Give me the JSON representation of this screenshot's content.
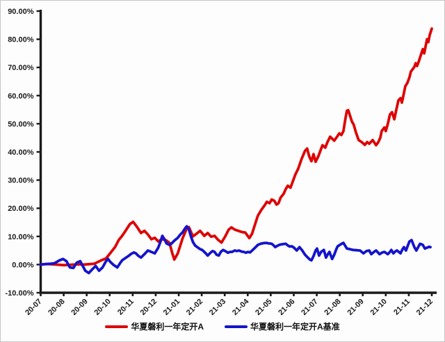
{
  "window": {
    "background": "#fdfdfd",
    "border_color": "#c6c6c6",
    "axis_color": "#1a1a1a"
  },
  "chart_data": {
    "type": "line",
    "title": "",
    "xlabel": "",
    "ylabel": "",
    "grid": "off",
    "legend_position": "bottom",
    "x_axis": {
      "categories": [
        "20-07",
        "20-08",
        "20-09",
        "20-10",
        "20-11",
        "20-12",
        "21-01",
        "21-02",
        "21-03",
        "21-04",
        "21-05",
        "21-06",
        "21-07",
        "21-08",
        "21-09",
        "21-10",
        "21-11",
        "21-12"
      ],
      "label_rotation_deg": -45
    },
    "y_axis": {
      "min": -10,
      "max": 90,
      "tick_step": 10,
      "tick_labels": [
        "90.00%",
        "80.00%",
        "70.00%",
        "60.00%",
        "50.00%",
        "40.00%",
        "30.00%",
        "20.00%",
        "10.00%",
        "0.00%",
        "-10.00%"
      ],
      "unit": "percent"
    },
    "series": [
      {
        "name": "华夏磐利一年定开A",
        "color": "#dd0505",
        "points": [
          [
            0,
            0
          ],
          [
            0.3,
            0.2
          ],
          [
            0.67,
            0
          ],
          [
            1,
            -0.2
          ],
          [
            1.27,
            -0.1
          ],
          [
            1.6,
            0.1
          ],
          [
            1.88,
            0
          ],
          [
            2.33,
            0.3
          ],
          [
            2.63,
            1.5
          ],
          [
            2.84,
            2.2
          ],
          [
            3.02,
            4
          ],
          [
            3.24,
            6.3
          ],
          [
            3.39,
            8.7
          ],
          [
            3.54,
            10.2
          ],
          [
            3.69,
            12
          ],
          [
            3.87,
            14.3
          ],
          [
            4.02,
            15.2
          ],
          [
            4.2,
            13.2
          ],
          [
            4.36,
            11.2
          ],
          [
            4.51,
            12
          ],
          [
            4.66,
            10.7
          ],
          [
            4.81,
            9
          ],
          [
            4.96,
            9.5
          ],
          [
            5.11,
            8.2
          ],
          [
            5.26,
            9
          ],
          [
            5.44,
            8.7
          ],
          [
            5.6,
            7.7
          ],
          [
            5.72,
            4
          ],
          [
            5.81,
            1.8
          ],
          [
            5.96,
            4
          ],
          [
            6.17,
            9.4
          ],
          [
            6.35,
            12.8
          ],
          [
            6.44,
            13.3
          ],
          [
            6.62,
            10
          ],
          [
            6.78,
            11
          ],
          [
            6.93,
            12
          ],
          [
            7.11,
            10.2
          ],
          [
            7.26,
            11.2
          ],
          [
            7.41,
            9.9
          ],
          [
            7.56,
            10.2
          ],
          [
            7.71,
            8.8
          ],
          [
            7.86,
            7.8
          ],
          [
            8.02,
            10
          ],
          [
            8.17,
            12.4
          ],
          [
            8.29,
            13.2
          ],
          [
            8.44,
            12.4
          ],
          [
            8.62,
            11.9
          ],
          [
            8.77,
            11.5
          ],
          [
            8.89,
            11.4
          ],
          [
            9.07,
            9.4
          ],
          [
            9.19,
            11
          ],
          [
            9.29,
            13.6
          ],
          [
            9.44,
            17.4
          ],
          [
            9.59,
            19.4
          ],
          [
            9.74,
            21.1
          ],
          [
            9.83,
            22.3
          ],
          [
            9.95,
            21.8
          ],
          [
            10.04,
            23.1
          ],
          [
            10.16,
            22.6
          ],
          [
            10.25,
            21.3
          ],
          [
            10.34,
            21.8
          ],
          [
            10.43,
            23.8
          ],
          [
            10.56,
            25.1
          ],
          [
            10.65,
            26.8
          ],
          [
            10.74,
            28
          ],
          [
            10.86,
            27.3
          ],
          [
            10.95,
            29.3
          ],
          [
            11.07,
            32
          ],
          [
            11.19,
            34
          ],
          [
            11.34,
            37.5
          ],
          [
            11.49,
            40.4
          ],
          [
            11.58,
            41.2
          ],
          [
            11.67,
            38.5
          ],
          [
            11.77,
            36.7
          ],
          [
            11.86,
            39.2
          ],
          [
            11.95,
            36.5
          ],
          [
            12.07,
            38.5
          ],
          [
            12.16,
            40.5
          ],
          [
            12.25,
            42.4
          ],
          [
            12.37,
            41.5
          ],
          [
            12.46,
            43.4
          ],
          [
            12.58,
            45.4
          ],
          [
            12.67,
            44.7
          ],
          [
            12.76,
            44
          ],
          [
            12.89,
            45.5
          ],
          [
            12.98,
            46.6
          ],
          [
            13.07,
            46
          ],
          [
            13.16,
            47.4
          ],
          [
            13.25,
            52
          ],
          [
            13.31,
            54.6
          ],
          [
            13.37,
            54.8
          ],
          [
            13.46,
            52.5
          ],
          [
            13.52,
            50.9
          ],
          [
            13.61,
            49.6
          ],
          [
            13.7,
            47
          ],
          [
            13.82,
            44.2
          ],
          [
            13.97,
            43.4
          ],
          [
            14.09,
            42.5
          ],
          [
            14.19,
            43.5
          ],
          [
            14.28,
            42.9
          ],
          [
            14.43,
            44.2
          ],
          [
            14.58,
            42.4
          ],
          [
            14.67,
            43.4
          ],
          [
            14.76,
            45
          ],
          [
            14.82,
            47.4
          ],
          [
            14.94,
            48.7
          ],
          [
            15,
            47.4
          ],
          [
            15.09,
            50
          ],
          [
            15.18,
            53.3
          ],
          [
            15.27,
            54.1
          ],
          [
            15.37,
            51.6
          ],
          [
            15.46,
            55
          ],
          [
            15.55,
            58.3
          ],
          [
            15.64,
            59.1
          ],
          [
            15.7,
            57.5
          ],
          [
            15.79,
            61
          ],
          [
            15.85,
            63.3
          ],
          [
            15.94,
            64.5
          ],
          [
            16.03,
            66.5
          ],
          [
            16.09,
            68.5
          ],
          [
            16.18,
            69.5
          ],
          [
            16.24,
            70.2
          ],
          [
            16.3,
            71.5
          ],
          [
            16.36,
            70.5
          ],
          [
            16.43,
            72
          ],
          [
            16.49,
            73.5
          ],
          [
            16.55,
            75
          ],
          [
            16.61,
            76.5
          ],
          [
            16.67,
            75
          ],
          [
            16.73,
            77.5
          ],
          [
            16.79,
            80
          ],
          [
            16.85,
            79
          ],
          [
            16.91,
            81.5
          ],
          [
            16.97,
            83
          ],
          [
            17,
            83.8
          ]
        ]
      },
      {
        "name": "华夏磐利一年定开A基准",
        "color": "#1414cc",
        "points": [
          [
            0,
            0
          ],
          [
            0.21,
            0.2
          ],
          [
            0.42,
            0.3
          ],
          [
            0.6,
            0.5
          ],
          [
            0.82,
            1.5
          ],
          [
            0.97,
            2
          ],
          [
            1.12,
            1.2
          ],
          [
            1.27,
            -1
          ],
          [
            1.42,
            -1.2
          ],
          [
            1.57,
            0.7
          ],
          [
            1.72,
            1.2
          ],
          [
            1.94,
            -2.2
          ],
          [
            2.09,
            -3
          ],
          [
            2.24,
            -1.7
          ],
          [
            2.39,
            -0.5
          ],
          [
            2.54,
            -2.2
          ],
          [
            2.69,
            -1
          ],
          [
            2.84,
            1.2
          ],
          [
            2.93,
            2
          ],
          [
            3.02,
            1
          ],
          [
            3.15,
            0
          ],
          [
            3.33,
            -1
          ],
          [
            3.45,
            0.5
          ],
          [
            3.54,
            1.5
          ],
          [
            3.66,
            2.2
          ],
          [
            3.75,
            2.7
          ],
          [
            3.84,
            3.2
          ],
          [
            3.93,
            3.8
          ],
          [
            4.05,
            4.3
          ],
          [
            4.14,
            4
          ],
          [
            4.23,
            3.2
          ],
          [
            4.36,
            2.5
          ],
          [
            4.51,
            3.7
          ],
          [
            4.66,
            5
          ],
          [
            4.81,
            4.5
          ],
          [
            4.96,
            4
          ],
          [
            5.11,
            6
          ],
          [
            5.2,
            8
          ],
          [
            5.29,
            10.2
          ],
          [
            5.38,
            9
          ],
          [
            5.47,
            7.5
          ],
          [
            5.6,
            7
          ],
          [
            5.69,
            7.5
          ],
          [
            5.81,
            8.5
          ],
          [
            5.96,
            9.5
          ],
          [
            6.05,
            10.5
          ],
          [
            6.17,
            11.5
          ],
          [
            6.29,
            13
          ],
          [
            6.35,
            13.6
          ],
          [
            6.44,
            12.5
          ],
          [
            6.53,
            10
          ],
          [
            6.62,
            8
          ],
          [
            6.71,
            6.8
          ],
          [
            6.84,
            6
          ],
          [
            6.93,
            5.5
          ],
          [
            7.02,
            5.2
          ],
          [
            7.11,
            4.5
          ],
          [
            7.2,
            3.8
          ],
          [
            7.26,
            3.2
          ],
          [
            7.38,
            4.2
          ],
          [
            7.47,
            4.8
          ],
          [
            7.56,
            4.5
          ],
          [
            7.65,
            3.5
          ],
          [
            7.74,
            3.2
          ],
          [
            7.83,
            4.5
          ],
          [
            7.93,
            5.2
          ],
          [
            8.02,
            4.8
          ],
          [
            8.14,
            4.2
          ],
          [
            8.23,
            4.5
          ],
          [
            8.32,
            4.5
          ],
          [
            8.44,
            5
          ],
          [
            8.53,
            4.8
          ],
          [
            8.62,
            5
          ],
          [
            8.74,
            4.6
          ],
          [
            8.83,
            4.5
          ],
          [
            8.92,
            4.2
          ],
          [
            9.01,
            4.5
          ],
          [
            9.1,
            4.3
          ],
          [
            9.19,
            5
          ],
          [
            9.32,
            6
          ],
          [
            9.44,
            7
          ],
          [
            9.56,
            7.4
          ],
          [
            9.68,
            7.6
          ],
          [
            9.8,
            7.7
          ],
          [
            9.92,
            7.5
          ],
          [
            10.04,
            7.4
          ],
          [
            10.13,
            6.8
          ],
          [
            10.19,
            6.2
          ],
          [
            10.28,
            6.6
          ],
          [
            10.37,
            7
          ],
          [
            10.47,
            7.2
          ],
          [
            10.56,
            7.3
          ],
          [
            10.65,
            7.4
          ],
          [
            10.74,
            6.8
          ],
          [
            10.83,
            6.4
          ],
          [
            10.92,
            6.5
          ],
          [
            11.01,
            6
          ],
          [
            11.13,
            5
          ],
          [
            11.25,
            6.2
          ],
          [
            11.37,
            5
          ],
          [
            11.49,
            3.5
          ],
          [
            11.61,
            2.5
          ],
          [
            11.7,
            1.8
          ],
          [
            11.77,
            1.5
          ],
          [
            11.86,
            3
          ],
          [
            11.95,
            5
          ],
          [
            12.01,
            5.7
          ],
          [
            12.1,
            3.2
          ],
          [
            12.19,
            4.5
          ],
          [
            12.31,
            5.2
          ],
          [
            12.4,
            2.5
          ],
          [
            12.49,
            3.8
          ],
          [
            12.55,
            4.5
          ],
          [
            12.67,
            2
          ],
          [
            12.76,
            3.5
          ],
          [
            12.85,
            5.5
          ],
          [
            12.91,
            6.5
          ],
          [
            13.04,
            7.2
          ],
          [
            13.16,
            7.7
          ],
          [
            13.25,
            6.5
          ],
          [
            13.31,
            5.7
          ],
          [
            13.43,
            5.5
          ],
          [
            13.58,
            5.2
          ],
          [
            13.73,
            5.1
          ],
          [
            13.88,
            5
          ],
          [
            14.03,
            4
          ],
          [
            14.16,
            4.8
          ],
          [
            14.28,
            5
          ],
          [
            14.37,
            3.7
          ],
          [
            14.49,
            4.5
          ],
          [
            14.58,
            5
          ],
          [
            14.73,
            3.7
          ],
          [
            14.85,
            4.3
          ],
          [
            14.94,
            4.5
          ],
          [
            15.09,
            3.7
          ],
          [
            15.18,
            4.5
          ],
          [
            15.24,
            5.2
          ],
          [
            15.33,
            4
          ],
          [
            15.42,
            4.7
          ],
          [
            15.49,
            5
          ],
          [
            15.64,
            4
          ],
          [
            15.73,
            5.5
          ],
          [
            15.79,
            6.2
          ],
          [
            15.88,
            5
          ],
          [
            15.97,
            7
          ],
          [
            16.03,
            8.2
          ],
          [
            16.12,
            8.7
          ],
          [
            16.24,
            6.2
          ],
          [
            16.33,
            5
          ],
          [
            16.43,
            6.5
          ],
          [
            16.49,
            7.4
          ],
          [
            16.61,
            7
          ],
          [
            16.7,
            5.7
          ],
          [
            16.79,
            6
          ],
          [
            16.88,
            6.3
          ],
          [
            16.94,
            6.2
          ]
        ]
      }
    ]
  },
  "legend": {
    "items": [
      {
        "label": "华夏磐利一年定开A",
        "color": "#dd0505"
      },
      {
        "label": "华夏磐利一年定开A基准",
        "color": "#1414cc"
      }
    ]
  }
}
